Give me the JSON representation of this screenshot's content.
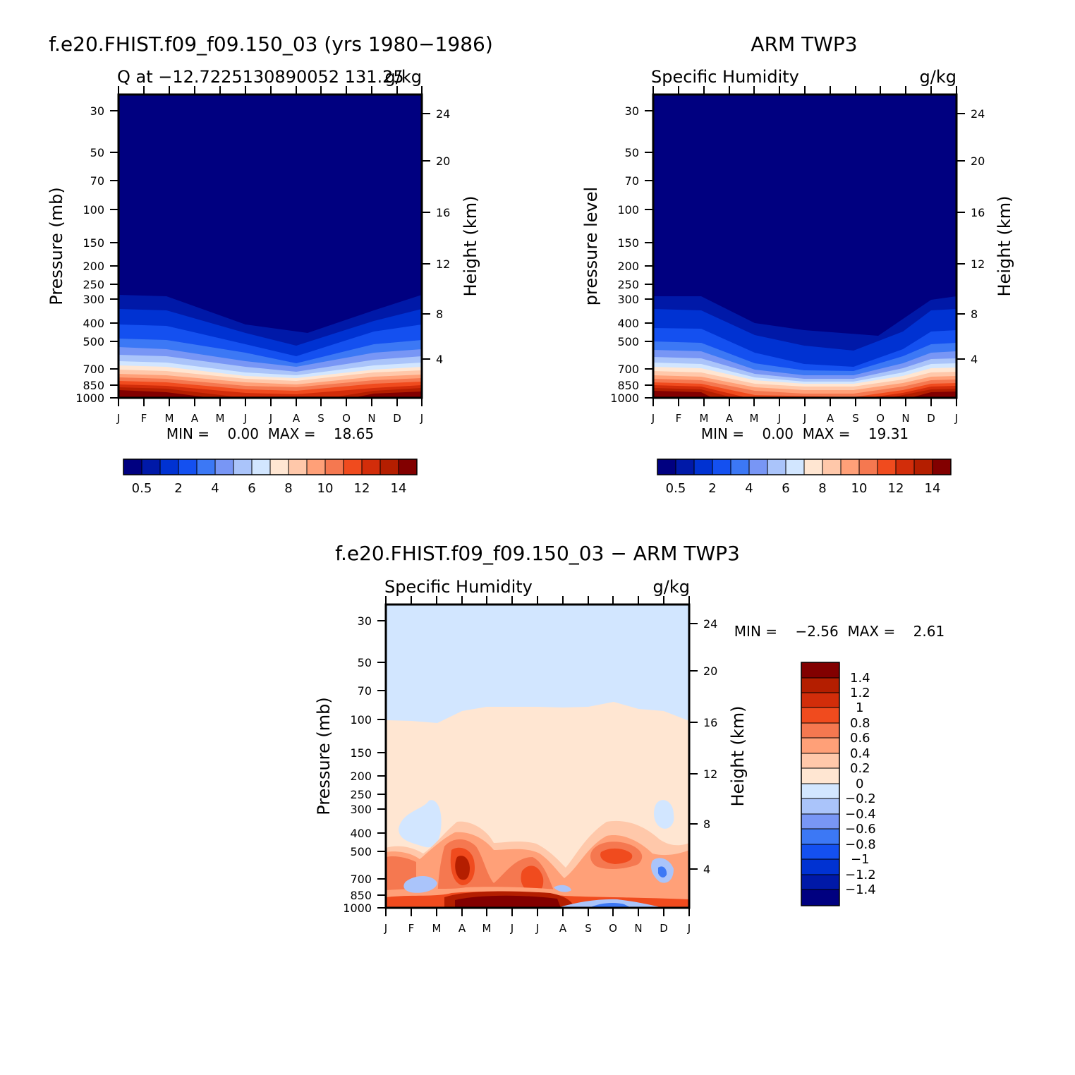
{
  "panels": {
    "model": {
      "title": "f.e20.FHIST.f09_f09.150_03 (yrs 1980−1986)",
      "left_string": "Q at −12.7225130890052 131.25",
      "right_string": "g/kg",
      "y_label": "Pressure (mb)",
      "y2_label": "Height (km)",
      "min_max": "MIN =    0.00  MAX =    18.65"
    },
    "obs": {
      "title": "ARM TWP3",
      "left_string": "Specific Humidity",
      "right_string": "g/kg",
      "y_label": "pressure level",
      "y2_label": "Height (km)",
      "min_max": "MIN =    0.00  MAX =    19.31"
    },
    "diff": {
      "title": "f.e20.FHIST.f09_f09.150_03 − ARM TWP3",
      "left_string": "Specific Humidity",
      "right_string": "g/kg",
      "y_label": "Pressure (mb)",
      "y2_label": "Height (km)",
      "min_max": "MIN =    −2.56  MAX =    2.61"
    }
  },
  "chart_data": [
    {
      "type": "heatmap",
      "panel": "model",
      "title": "f.e20.FHIST.f09_f09.150_03 (yrs 1980−1986)",
      "ylabel": "Pressure (mb)",
      "y2label": "Height (km)",
      "xticks": [
        "J",
        "F",
        "M",
        "A",
        "M",
        "J",
        "J",
        "A",
        "S",
        "O",
        "N",
        "D",
        "J"
      ],
      "yticks": [
        30,
        50,
        70,
        100,
        150,
        200,
        250,
        300,
        400,
        500,
        700,
        850,
        1000
      ],
      "y2ticks": [
        4,
        8,
        12,
        16,
        20,
        24
      ],
      "ylim": [
        1000,
        20
      ],
      "yscale": "log",
      "months": [
        "J",
        "F",
        "M",
        "A",
        "M",
        "J",
        "J",
        "A",
        "S",
        "O",
        "N",
        "D",
        "J"
      ],
      "moist_top_pressure": [
        290,
        290,
        300,
        340,
        380,
        410,
        420,
        460,
        410,
        370,
        330,
        300,
        290
      ],
      "surface_max_gkg": [
        18.4,
        18.5,
        18.2,
        17.2,
        15.8,
        14.8,
        14.5,
        14.2,
        15.0,
        16.5,
        17.8,
        18.3,
        18.4
      ],
      "min": 0.0,
      "max": 18.65,
      "units": "g/kg",
      "colorbar_labels": [
        "0.5",
        "2",
        "4",
        "6",
        "8",
        "10",
        "12",
        "14"
      ]
    },
    {
      "type": "heatmap",
      "panel": "obs",
      "title": "ARM TWP3",
      "ylabel": "pressure level",
      "y2label": "Height (km)",
      "xticks": [
        "J",
        "F",
        "M",
        "A",
        "M",
        "J",
        "J",
        "A",
        "S",
        "O",
        "N",
        "D",
        "J"
      ],
      "yticks": [
        30,
        50,
        70,
        100,
        150,
        200,
        250,
        300,
        400,
        500,
        700,
        850,
        1000
      ],
      "y2ticks": [
        4,
        8,
        12,
        16,
        20,
        24
      ],
      "ylim": [
        1000,
        20
      ],
      "yscale": "log",
      "months": [
        "J",
        "F",
        "M",
        "A",
        "M",
        "J",
        "J",
        "A",
        "S",
        "O",
        "N",
        "D",
        "J"
      ],
      "moist_top_pressure": [
        290,
        290,
        295,
        360,
        400,
        405,
        420,
        450,
        460,
        420,
        330,
        290,
        290
      ],
      "surface_max_gkg": [
        19.0,
        19.1,
        18.6,
        16.5,
        15.0,
        14.0,
        13.5,
        13.0,
        14.0,
        16.0,
        18.0,
        19.0,
        19.0
      ],
      "min": 0.0,
      "max": 19.31,
      "units": "g/kg",
      "colorbar_labels": [
        "0.5",
        "2",
        "4",
        "6",
        "8",
        "10",
        "12",
        "14"
      ]
    },
    {
      "type": "heatmap",
      "panel": "diff",
      "title": "f.e20.FHIST.f09_f09.150_03 − ARM TWP3",
      "ylabel": "Pressure (mb)",
      "y2label": "Height (km)",
      "xticks": [
        "J",
        "F",
        "M",
        "A",
        "M",
        "J",
        "J",
        "A",
        "S",
        "O",
        "N",
        "D",
        "J"
      ],
      "yticks": [
        30,
        50,
        70,
        100,
        150,
        200,
        250,
        300,
        400,
        500,
        700,
        850,
        1000
      ],
      "y2ticks": [
        4,
        8,
        12,
        16,
        20,
        24
      ],
      "ylim": [
        1000,
        20
      ],
      "yscale": "log",
      "upper_boundary_pressure": [
        100,
        95,
        100,
        88,
        85,
        85,
        85,
        86,
        85,
        82,
        77,
        85,
        100
      ],
      "min": -2.56,
      "max": 2.61,
      "units": "g/kg",
      "colorbar_labels": [
        "1.4",
        "1.2",
        "1",
        "0.8",
        "0.6",
        "0.4",
        "0.2",
        "0",
        "−0.2",
        "−0.4",
        "−0.6",
        "−0.8",
        "−1",
        "−1.2",
        "−1.4"
      ]
    }
  ],
  "palette": {
    "humidity": [
      "#000080",
      "#0019a8",
      "#0032d2",
      "#1450f0",
      "#3c78f5",
      "#7896f5",
      "#aac4fa",
      "#d2e6ff",
      "#ffe6d2",
      "#ffc8aa",
      "#ffa078",
      "#f57850",
      "#f04b1e",
      "#d22d0a",
      "#b41e00",
      "#820000"
    ],
    "difference": [
      "#820000",
      "#b41e00",
      "#d22d0a",
      "#f04b1e",
      "#f57850",
      "#ffa078",
      "#ffe6d2",
      "#d2e6ff",
      "#aac4fa",
      "#7896f5",
      "#3c78f5",
      "#1450f0",
      "#0032d2",
      "#000080"
    ]
  }
}
